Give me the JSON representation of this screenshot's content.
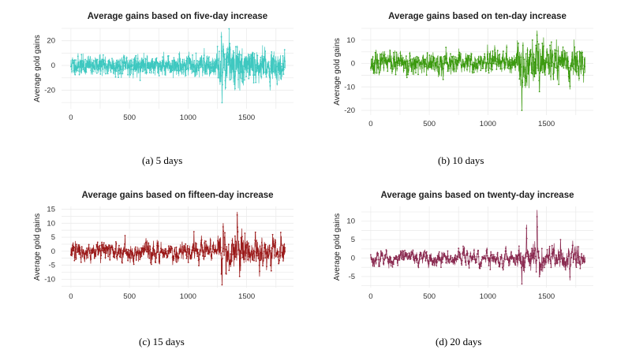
{
  "chart_data": [
    {
      "type": "line",
      "title": "Average gains based on five-day increase",
      "ylabel": "Average gold gains",
      "xlabel": "",
      "caption": "(a)  5 days",
      "color": "#3ec8c0",
      "xlim": [
        -80,
        1900
      ],
      "ylim": [
        -35,
        30
      ],
      "xticks": [
        0,
        500,
        1000,
        1500
      ],
      "yticks": [
        20,
        0,
        -20
      ],
      "n_points": 1830,
      "series_seed": 11,
      "base_amplitude": 2.5,
      "smoothing": 0.35,
      "spikes": [
        {
          "x": 1290,
          "value": -31
        },
        {
          "x": 1285,
          "value": 27
        },
        {
          "x": 1300,
          "value": 18
        },
        {
          "x": 1320,
          "value": -18
        },
        {
          "x": 1340,
          "value": 15
        },
        {
          "x": 1400,
          "value": -20
        },
        {
          "x": 1420,
          "value": 16
        },
        {
          "x": 1560,
          "value": -14
        },
        {
          "x": 1700,
          "value": -20
        },
        {
          "x": 1760,
          "value": -16
        },
        {
          "x": 1270,
          "value": -12
        }
      ]
    },
    {
      "type": "line",
      "title": "Average gains based on ten-day increase",
      "ylabel": "Average gold gains",
      "xlabel": "",
      "caption": "(b)  10 days",
      "color": "#3c9a10",
      "xlim": [
        -80,
        1900
      ],
      "ylim": [
        -22,
        15
      ],
      "xticks": [
        0,
        500,
        1000,
        1500
      ],
      "yticks": [
        10,
        0,
        -10,
        -20
      ],
      "n_points": 1830,
      "series_seed": 23,
      "base_amplitude": 2.0,
      "smoothing": 0.6,
      "spikes": [
        {
          "x": 1290,
          "value": -20
        },
        {
          "x": 1300,
          "value": 9
        },
        {
          "x": 1420,
          "value": 14
        },
        {
          "x": 1440,
          "value": -12
        },
        {
          "x": 1380,
          "value": 10
        },
        {
          "x": 1700,
          "value": -11
        },
        {
          "x": 1160,
          "value": 8
        },
        {
          "x": 1330,
          "value": -8
        }
      ]
    },
    {
      "type": "line",
      "title": "Average gains based on fifteen-day increase",
      "ylabel": "Average gold gains",
      "xlabel": "",
      "caption": "(c)  15 days",
      "color": "#9b1a1a",
      "xlim": [
        -80,
        1900
      ],
      "ylim": [
        -13,
        16
      ],
      "xticks": [
        0,
        500,
        1000,
        1500
      ],
      "yticks": [
        15,
        10,
        5,
        0,
        -5,
        -10
      ],
      "n_points": 1830,
      "series_seed": 37,
      "base_amplitude": 2.0,
      "smoothing": 0.75,
      "spikes": [
        {
          "x": 1420,
          "value": 14
        },
        {
          "x": 1290,
          "value": -12
        },
        {
          "x": 1440,
          "value": -9
        },
        {
          "x": 1300,
          "value": 10
        },
        {
          "x": 1610,
          "value": -9
        },
        {
          "x": 1710,
          "value": -7
        },
        {
          "x": 1050,
          "value": 7
        }
      ]
    },
    {
      "type": "line",
      "title": "Average gains based on twenty-day increase",
      "ylabel": "Average gold gains",
      "xlabel": "",
      "caption": "(d)  20 days",
      "color": "#8a2a50",
      "xlim": [
        -80,
        1900
      ],
      "ylim": [
        -8,
        14
      ],
      "xticks": [
        0,
        500,
        1000,
        1500
      ],
      "yticks": [
        10,
        5,
        0,
        -5
      ],
      "n_points": 1830,
      "series_seed": 53,
      "base_amplitude": 1.6,
      "smoothing": 0.82,
      "spikes": [
        {
          "x": 1420,
          "value": 13
        },
        {
          "x": 1330,
          "value": 9
        },
        {
          "x": 1290,
          "value": -7
        },
        {
          "x": 1440,
          "value": -5
        },
        {
          "x": 1700,
          "value": -6
        },
        {
          "x": 1620,
          "value": 5
        }
      ]
    }
  ]
}
